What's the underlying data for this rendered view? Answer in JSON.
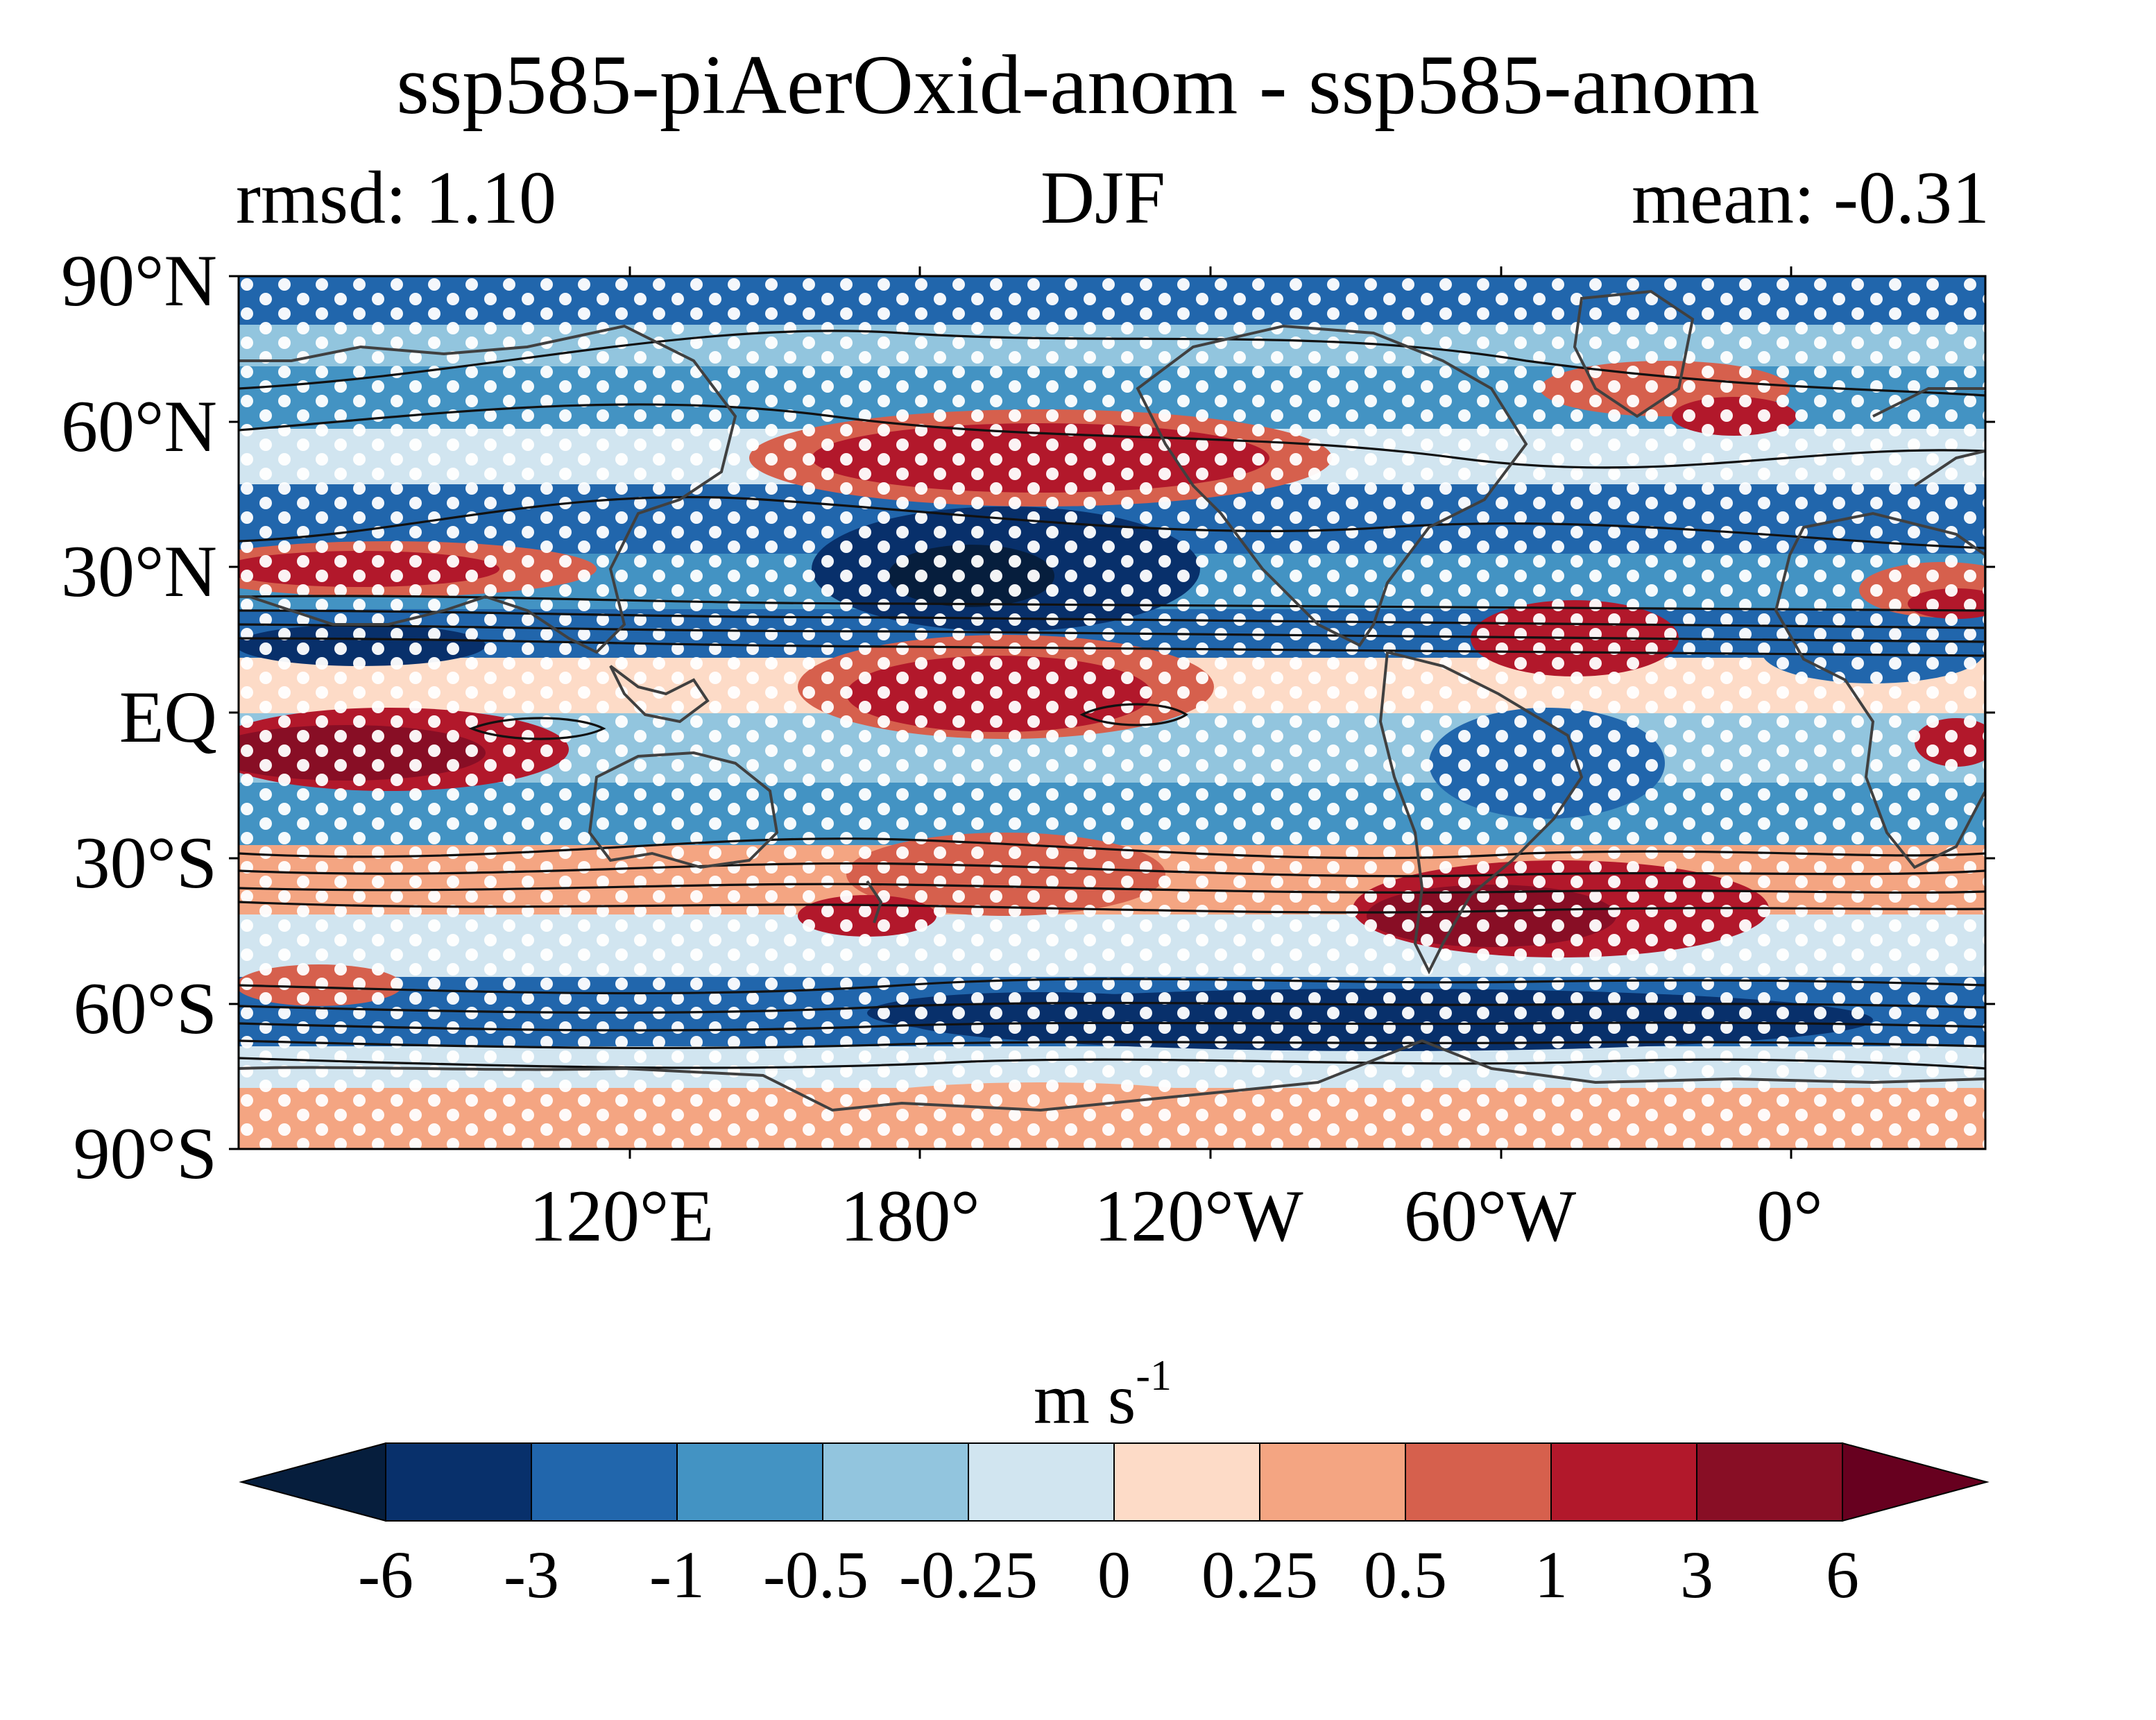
{
  "title": "ssp585-piAerOxid-anom - ssp585-anom",
  "left_stat": "rmsd: 1.10",
  "season": "DJF",
  "right_stat": "mean: -0.31",
  "map": {
    "projection": "PlateCarree",
    "central_longitude": "30°W",
    "lon_range": [
      30,
      390
    ],
    "lat_range": [
      -90,
      90
    ],
    "filled_field": "wind anomaly difference",
    "contours": "black lines (climatological jet)",
    "stippling": "white dots",
    "coastlines_color": "#404040",
    "lat_ticks": [
      "90°N",
      "60°N",
      "30°N",
      "EQ",
      "30°S",
      "60°S",
      "90°S"
    ],
    "lon_ticks": [
      "120°E",
      "180°",
      "120°W",
      "60°W",
      "0°"
    ]
  },
  "colorbar": {
    "units": "m s",
    "units_exponent": "-1",
    "extend": "both",
    "ticks": [
      "-6",
      "-3",
      "-1",
      "-0.5",
      "-0.25",
      "0",
      "0.25",
      "0.5",
      "1",
      "3",
      "6"
    ],
    "colors": [
      "#061e3d",
      "#08306b",
      "#2166ac",
      "#4393c3",
      "#92c5de",
      "#d1e5f0",
      "#fddbc7",
      "#f4a582",
      "#d6604d",
      "#b2182b",
      "#880e25",
      "#67001f"
    ]
  },
  "chart_data": {
    "type": "heatmap",
    "title": "ssp585-piAerOxid-anom - ssp585-anom",
    "subtitle_left": "rmsd: 1.10",
    "subtitle_center": "DJF",
    "subtitle_right": "mean: -0.31",
    "rmsd": 1.1,
    "mean": -0.31,
    "colorbar_levels": [
      -6,
      -3,
      -1,
      -0.5,
      -0.25,
      0,
      0.25,
      0.5,
      1,
      3,
      6
    ],
    "units": "m s-1",
    "x_ticks": [
      "120°E",
      "180°",
      "120°W",
      "60°W",
      "0°"
    ],
    "y_ticks": [
      "90°N",
      "60°N",
      "30°N",
      "EQ",
      "30°S",
      "60°S",
      "90°S"
    ],
    "approx_zonal_bands": [
      {
        "lat": 80,
        "value": -0.5
      },
      {
        "lat": 60,
        "value": -1
      },
      {
        "lat": 50,
        "value": 1
      },
      {
        "lat": 30,
        "value": -1
      },
      {
        "lat": 20,
        "value": -1
      },
      {
        "lat": 10,
        "value": 1
      },
      {
        "lat": 0,
        "value": 1
      },
      {
        "lat": -15,
        "value": -1
      },
      {
        "lat": -40,
        "value": 1
      },
      {
        "lat": -60,
        "value": -3
      },
      {
        "lat": -80,
        "value": 0.25
      }
    ]
  }
}
